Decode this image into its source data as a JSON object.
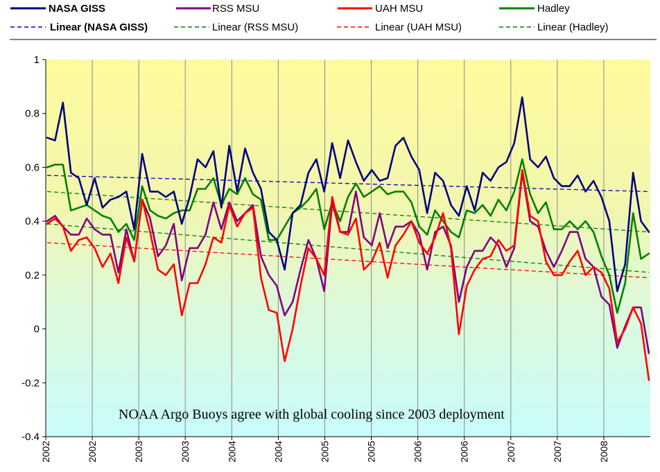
{
  "chart_data": {
    "type": "line",
    "title": "",
    "xlabel": "",
    "ylabel": "",
    "ylim": [
      -0.4,
      1
    ],
    "y_ticks": [
      "1",
      "0.8",
      "0.6",
      "0.4",
      "0.2",
      "0",
      "-0.2",
      "-0.4"
    ],
    "x_tick_labels": [
      "2002",
      "2002",
      "2003",
      "2003",
      "2004",
      "2004",
      "2005",
      "2005",
      "2006",
      "2006",
      "2007",
      "2007",
      "2008"
    ],
    "grid": "vertical",
    "legend_position": "top",
    "annotation": "NOAA Argo Buoys agree with global cooling since 2003 deployment",
    "series": [
      {
        "name": "NASA GISS",
        "color": "#000080",
        "values": [
          0.71,
          0.7,
          0.84,
          0.58,
          0.56,
          0.46,
          0.56,
          0.45,
          0.48,
          0.49,
          0.51,
          0.37,
          0.65,
          0.51,
          0.51,
          0.49,
          0.51,
          0.39,
          0.49,
          0.63,
          0.6,
          0.66,
          0.45,
          0.68,
          0.51,
          0.67,
          0.58,
          0.52,
          0.36,
          0.33,
          0.22,
          0.43,
          0.46,
          0.58,
          0.63,
          0.51,
          0.69,
          0.56,
          0.7,
          0.62,
          0.55,
          0.59,
          0.55,
          0.56,
          0.68,
          0.71,
          0.64,
          0.59,
          0.43,
          0.58,
          0.55,
          0.46,
          0.42,
          0.53,
          0.44,
          0.58,
          0.55,
          0.6,
          0.62,
          0.69,
          0.86,
          0.63,
          0.6,
          0.64,
          0.56,
          0.53,
          0.53,
          0.57,
          0.51,
          0.55,
          0.49,
          0.4,
          0.14,
          0.24,
          0.58,
          0.4,
          0.36
        ],
        "trend_name": "Linear (NASA GISS)",
        "trend": [
          0.57,
          0.51
        ]
      },
      {
        "name": "RSS MSU",
        "color": "#800080",
        "values": [
          0.4,
          0.42,
          0.38,
          0.35,
          0.35,
          0.41,
          0.37,
          0.35,
          0.35,
          0.21,
          0.37,
          0.25,
          0.48,
          0.41,
          0.27,
          0.31,
          0.39,
          0.18,
          0.3,
          0.3,
          0.35,
          0.47,
          0.37,
          0.47,
          0.4,
          0.43,
          0.46,
          0.27,
          0.2,
          0.16,
          0.05,
          0.1,
          0.22,
          0.33,
          0.26,
          0.14,
          0.47,
          0.36,
          0.36,
          0.51,
          0.34,
          0.31,
          0.43,
          0.3,
          0.38,
          0.38,
          0.4,
          0.35,
          0.22,
          0.36,
          0.38,
          0.31,
          0.1,
          0.23,
          0.29,
          0.29,
          0.34,
          0.31,
          0.23,
          0.3,
          0.58,
          0.4,
          0.38,
          0.29,
          0.23,
          0.29,
          0.36,
          0.36,
          0.26,
          0.23,
          0.12,
          0.09,
          -0.07,
          0.01,
          0.08,
          0.08,
          -0.09
        ],
        "trend_name": "Linear (RSS MSU)",
        "trend": [
          0.39,
          0.21
        ]
      },
      {
        "name": "UAH MSU",
        "color": "#ff0000",
        "values": [
          0.39,
          0.41,
          0.38,
          0.29,
          0.33,
          0.34,
          0.3,
          0.23,
          0.28,
          0.17,
          0.34,
          0.25,
          0.48,
          0.36,
          0.22,
          0.2,
          0.24,
          0.05,
          0.17,
          0.17,
          0.24,
          0.34,
          0.32,
          0.46,
          0.38,
          0.43,
          0.45,
          0.19,
          0.07,
          0.06,
          -0.12,
          0.0,
          0.16,
          0.3,
          0.26,
          0.2,
          0.49,
          0.36,
          0.35,
          0.41,
          0.22,
          0.25,
          0.32,
          0.19,
          0.31,
          0.35,
          0.4,
          0.32,
          0.28,
          0.34,
          0.43,
          0.3,
          -0.02,
          0.16,
          0.22,
          0.26,
          0.27,
          0.33,
          0.29,
          0.31,
          0.59,
          0.42,
          0.4,
          0.25,
          0.2,
          0.2,
          0.25,
          0.29,
          0.2,
          0.23,
          0.21,
          0.15,
          -0.05,
          0.0,
          0.08,
          0.02,
          -0.19
        ],
        "trend_name": "Linear (UAH MSU)",
        "trend": [
          0.32,
          0.19
        ]
      },
      {
        "name": "Hadley",
        "color": "#008000",
        "values": [
          0.6,
          0.61,
          0.61,
          0.44,
          0.45,
          0.46,
          0.44,
          0.42,
          0.41,
          0.36,
          0.39,
          0.33,
          0.53,
          0.44,
          0.42,
          0.41,
          0.43,
          0.44,
          0.44,
          0.52,
          0.52,
          0.56,
          0.46,
          0.52,
          0.5,
          0.56,
          0.5,
          0.48,
          0.33,
          0.33,
          0.38,
          0.43,
          0.45,
          0.48,
          0.52,
          0.37,
          0.47,
          0.4,
          0.49,
          0.54,
          0.49,
          0.51,
          0.53,
          0.5,
          0.51,
          0.51,
          0.47,
          0.38,
          0.35,
          0.44,
          0.4,
          0.36,
          0.34,
          0.44,
          0.43,
          0.46,
          0.42,
          0.48,
          0.44,
          0.51,
          0.63,
          0.5,
          0.43,
          0.47,
          0.37,
          0.37,
          0.4,
          0.37,
          0.4,
          0.36,
          0.27,
          0.2,
          0.06,
          0.17,
          0.43,
          0.26,
          0.28
        ],
        "trend_name": "Linear (Hadley)",
        "trend": [
          0.51,
          0.36
        ]
      }
    ]
  }
}
